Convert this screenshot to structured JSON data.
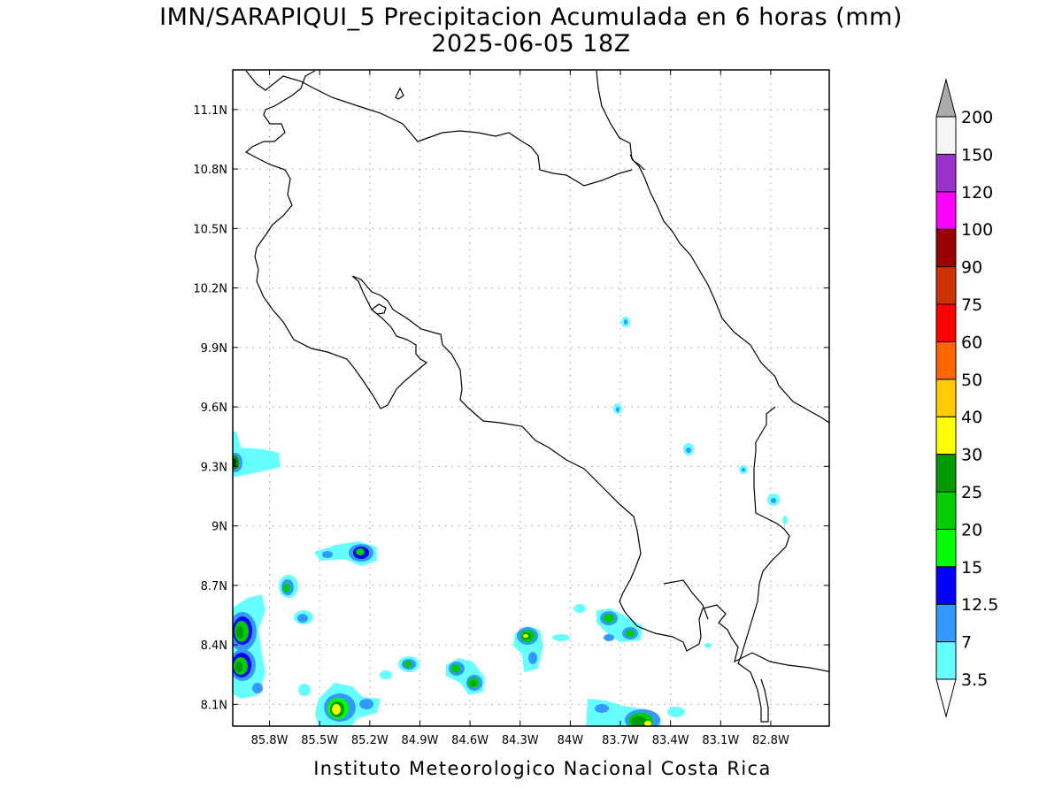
{
  "title": {
    "line1": "IMN/SARAPIQUI_5 Precipitacion Acumulada en 6 horas (mm)",
    "line2": "2025-06-05 18Z"
  },
  "credit": "Instituto Meteorologico Nacional Costa Rica",
  "map": {
    "lon_range": [
      -86.02,
      -82.45
    ],
    "lat_range": [
      7.99,
      11.3
    ],
    "lat_ticks": [
      {
        "v": 11.1,
        "label": "11.1N"
      },
      {
        "v": 10.8,
        "label": "10.8N"
      },
      {
        "v": 10.5,
        "label": "10.5N"
      },
      {
        "v": 10.2,
        "label": "10.2N"
      },
      {
        "v": 9.9,
        "label": "9.9N"
      },
      {
        "v": 9.6,
        "label": "9.6N"
      },
      {
        "v": 9.3,
        "label": "9.3N"
      },
      {
        "v": 9.0,
        "label": "9N"
      },
      {
        "v": 8.7,
        "label": "8.7N"
      },
      {
        "v": 8.4,
        "label": "8.4N"
      },
      {
        "v": 8.1,
        "label": "8.1N"
      }
    ],
    "lon_ticks": [
      {
        "v": -85.8,
        "label": "85.8W"
      },
      {
        "v": -85.5,
        "label": "85.5W"
      },
      {
        "v": -85.2,
        "label": "85.2W"
      },
      {
        "v": -84.9,
        "label": "84.9W"
      },
      {
        "v": -84.6,
        "label": "84.6W"
      },
      {
        "v": -84.3,
        "label": "84.3W"
      },
      {
        "v": -84.0,
        "label": "84W"
      },
      {
        "v": -83.7,
        "label": "83.7W"
      },
      {
        "v": -83.4,
        "label": "83.4W"
      },
      {
        "v": -83.1,
        "label": "83.1W"
      },
      {
        "v": -82.8,
        "label": "82.8W"
      }
    ],
    "grid": true
  },
  "colorbar": {
    "levels": [
      "3.5",
      "7",
      "12.5",
      "15",
      "20",
      "25",
      "30",
      "40",
      "50",
      "60",
      "75",
      "90",
      "100",
      "120",
      "150",
      "200"
    ],
    "colors": [
      "#66ffff",
      "#3399ff",
      "#0000ff",
      "#00ff00",
      "#00cc00",
      "#009900",
      "#ffff00",
      "#ffcc00",
      "#ff6600",
      "#ff0000",
      "#cc3300",
      "#990000",
      "#ff00ff",
      "#9933cc",
      "#f5f5f5"
    ],
    "over_color": "#aaaaaa",
    "under_color": "#ffffff"
  }
}
